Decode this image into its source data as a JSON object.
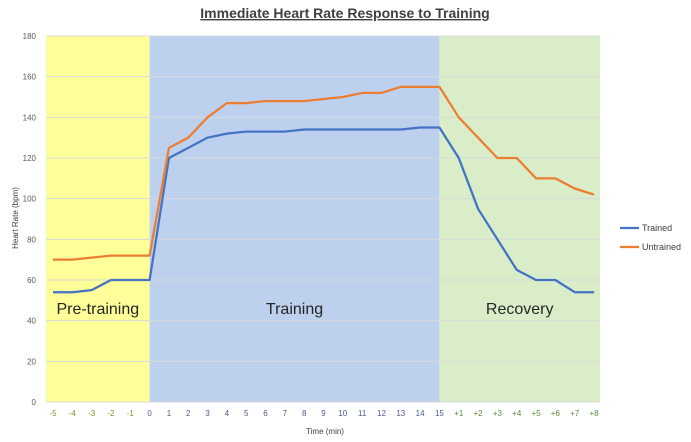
{
  "chart_data": {
    "type": "line",
    "title": "Immediate Heart Rate Response to Training",
    "xlabel": "Time (min)",
    "ylabel": "Heart Rate (bpm)",
    "ylim": [
      0,
      180
    ],
    "yticks": [
      0,
      20,
      40,
      60,
      80,
      100,
      120,
      140,
      160,
      180
    ],
    "grid": true,
    "legend_position": "right",
    "categories": [
      "-5",
      "-4",
      "-3",
      "-2",
      "-1",
      "0",
      "1",
      "2",
      "3",
      "4",
      "5",
      "6",
      "7",
      "8",
      "9",
      "10",
      "11",
      "12",
      "13",
      "14",
      "15",
      "+1",
      "+2",
      "+3",
      "+4",
      "+5",
      "+6",
      "+7",
      "+8"
    ],
    "category_colors": {
      "pre": "#8a8a2a",
      "training": "#4a5a8a",
      "recovery": "#5a8a3a"
    },
    "series": [
      {
        "name": "Trained",
        "color": "#4472c4",
        "values": [
          54,
          54,
          55,
          60,
          60,
          60,
          120,
          125,
          130,
          132,
          133,
          133,
          133,
          134,
          134,
          134,
          134,
          134,
          134,
          135,
          135,
          120,
          95,
          80,
          65,
          60,
          60,
          54,
          54
        ]
      },
      {
        "name": "Untrained",
        "color": "#ed7d31",
        "values": [
          70,
          70,
          71,
          72,
          72,
          72,
          125,
          130,
          140,
          147,
          147,
          148,
          148,
          148,
          149,
          150,
          152,
          152,
          155,
          155,
          155,
          140,
          130,
          120,
          120,
          110,
          110,
          105,
          102
        ]
      }
    ],
    "regions": [
      {
        "label": "Pre-training",
        "color": "#ffff99",
        "from_index": 0,
        "to_index": 5
      },
      {
        "label": "Training",
        "color": "#bdd0ee",
        "from_index": 5,
        "to_index": 20
      },
      {
        "label": "Recovery",
        "color": "#d9eec8",
        "from_index": 20,
        "to_index": 28
      }
    ]
  }
}
